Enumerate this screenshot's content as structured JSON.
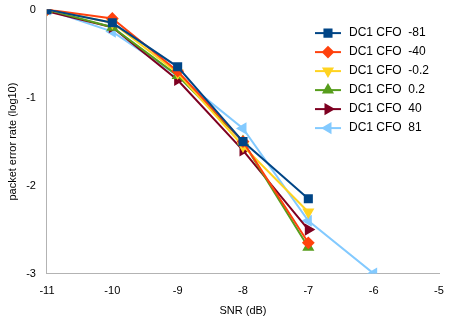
{
  "chart_data": {
    "type": "line",
    "x_label": "SNR (dB)",
    "y_label": "packet error rate (log10)",
    "x": [
      -11,
      -10,
      -9,
      -8,
      -7,
      -6
    ],
    "xlim": [
      -11,
      -5
    ],
    "xticks": [
      -11,
      -10,
      -9,
      -8,
      -7,
      -6,
      -5
    ],
    "ylim": [
      -3,
      0
    ],
    "yticks": [
      -3,
      -2,
      -1,
      0
    ],
    "grid": false,
    "legend": "top-right",
    "series": [
      {
        "name": "DC1 CFO  -81",
        "color": "#004586",
        "marker": "square",
        "values": [
          0,
          -0.15,
          -0.65,
          -1.5,
          -2.15,
          null
        ]
      },
      {
        "name": "DC1 CFO  -40",
        "color": "#ff420e",
        "marker": "diamond",
        "values": [
          0,
          -0.1,
          -0.7,
          -1.5,
          -2.65,
          null
        ]
      },
      {
        "name": "DC1 CFO  -0.2",
        "color": "#ffd320",
        "marker": "triangle_down",
        "values": [
          0,
          -0.15,
          -0.72,
          -1.55,
          -2.3,
          null
        ]
      },
      {
        "name": "DC1 CFO  0.2",
        "color": "#579d1c",
        "marker": "triangle",
        "values": [
          0,
          -0.2,
          -0.75,
          -1.5,
          -2.7,
          null
        ]
      },
      {
        "name": "DC1 CFO  40",
        "color": "#7e0021",
        "marker": "triangle_right",
        "values": [
          -0.02,
          -0.2,
          -0.8,
          -1.6,
          -2.5,
          null
        ]
      },
      {
        "name": "DC1 CFO  81",
        "color": "#83caff",
        "marker": "triangle_left",
        "values": [
          0,
          -0.25,
          -0.75,
          -1.35,
          -2.4,
          -3
        ]
      }
    ]
  }
}
